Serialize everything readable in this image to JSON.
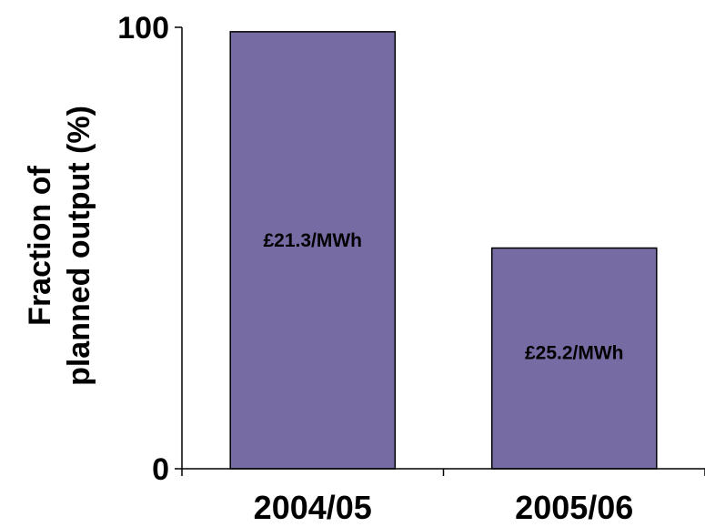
{
  "chart_data": {
    "type": "bar",
    "categories": [
      "2004/05",
      "2005/06"
    ],
    "values": [
      99,
      50
    ],
    "data_labels": [
      "£21.3/MWh",
      "£25.2/MWh"
    ],
    "ylabel_lines": [
      "Fraction of",
      "planned output (%)"
    ],
    "xlabel": "",
    "ylim": [
      0,
      100
    ],
    "yticks": [
      0,
      100
    ],
    "ytick_labels": [
      "0",
      "100"
    ],
    "bar_color": "#776ba4",
    "grid": false,
    "legend": "none"
  }
}
